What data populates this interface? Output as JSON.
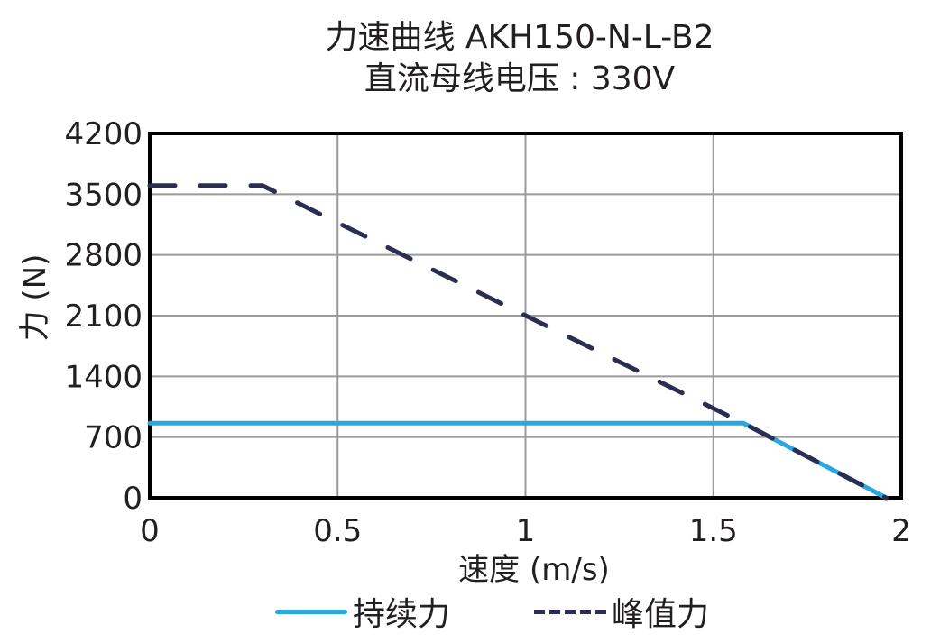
{
  "chart_data": {
    "type": "line",
    "title": "力速曲线 AKH150-N-L-B2",
    "subtitle": "直流母线电压 : 330V",
    "xlabel": "速度 (m/s)",
    "ylabel": "力 (N)",
    "xlim": [
      0,
      2
    ],
    "ylim": [
      0,
      4200
    ],
    "x_ticks": [
      "0",
      "0.5",
      "1",
      "1.5",
      "2"
    ],
    "y_ticks": [
      "0",
      "700",
      "1400",
      "2100",
      "2800",
      "3500",
      "4200"
    ],
    "grid": true,
    "legend_position": "bottom",
    "series": [
      {
        "name": "持续力",
        "style": "solid",
        "color": "#29a8e0",
        "points": [
          [
            0,
            860
          ],
          [
            1.58,
            860
          ],
          [
            1.96,
            0
          ]
        ]
      },
      {
        "name": "峰值力",
        "style": "dashed",
        "color": "#2b2d52",
        "points": [
          [
            0,
            3600
          ],
          [
            0.3,
            3600
          ],
          [
            1.58,
            860
          ],
          [
            1.96,
            0
          ]
        ]
      }
    ]
  },
  "legend": {
    "continuous": "持续力",
    "peak": "峰值力"
  }
}
